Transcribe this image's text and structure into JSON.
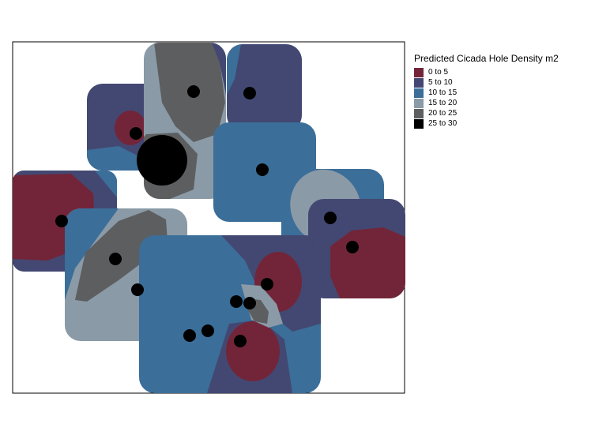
{
  "legend": {
    "title": "Predicted Cicada Hole Density m2",
    "classes": [
      {
        "label": "0 to 5",
        "color": "#722539"
      },
      {
        "label": "5 to 10",
        "color": "#434872"
      },
      {
        "label": "10 to 15",
        "color": "#3b6e99"
      },
      {
        "label": "15 to 20",
        "color": "#8a9aa7"
      },
      {
        "label": "20 to 25",
        "color": "#5d5e60"
      },
      {
        "label": "25 to 30",
        "color": "#000000"
      }
    ]
  },
  "map": {
    "plot_count": 9,
    "sample_point_count": 16
  }
}
